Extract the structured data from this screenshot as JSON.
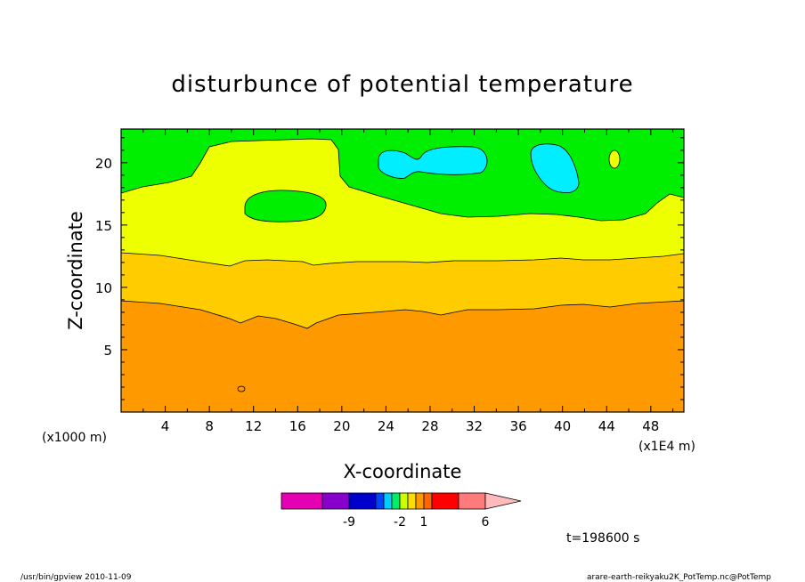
{
  "chart_data": {
    "type": "filled-contour",
    "title": "disturbunce of potential temperature",
    "xlabel": "X-coordinate",
    "ylabel": "Z-coordinate",
    "x_unit_left": "(x1000 m)",
    "x_unit_right": "(x1E4 m)",
    "xticks": [
      "4",
      "8",
      "12",
      "16",
      "20",
      "24",
      "28",
      "32",
      "36",
      "40",
      "44",
      "48"
    ],
    "yticks": [
      "5",
      "10",
      "15",
      "20"
    ],
    "xlim": [
      0,
      51
    ],
    "ylim": [
      0,
      22.7
    ],
    "levels_fill": {
      "bottom": "#ff9900",
      "lower_mid": "#ffcc00",
      "upper_mid": "#eeff00",
      "top": "#00ee00",
      "cold_patch": "#00eeff"
    },
    "colorbar": {
      "colors": [
        "#e600b4",
        "#8800cc",
        "#0000cc",
        "#0044ff",
        "#00ccff",
        "#00ee66",
        "#ccff00",
        "#ffdd00",
        "#ff9900",
        "#ff6600",
        "#ff0000",
        "#ff7b7b",
        "#ffbbbb"
      ],
      "labels": [
        "-9",
        "-2",
        "1",
        "6"
      ]
    },
    "time_label": "t=198600 s",
    "footer_left": "/usr/bin/gpview   2010-11-09",
    "footer_right": "arare-earth-reikyaku2K_PotTemp.nc@PotTemp"
  }
}
